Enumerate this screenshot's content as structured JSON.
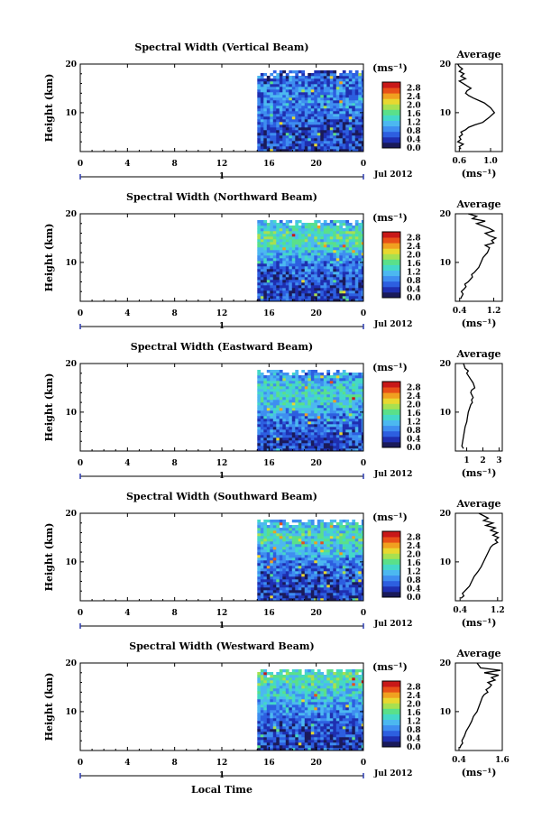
{
  "figure": {
    "xlabel": "Local Time",
    "date_label": "Jul 2012",
    "day_label": "1",
    "colorbar_unit": "(ms⁻¹)",
    "colorbar_ticks": [
      "0.0",
      "0.4",
      "0.8",
      "1.2",
      "1.6",
      "2.0",
      "2.4",
      "2.8"
    ],
    "colormap": [
      "#1a1a5a",
      "#1f2fb0",
      "#2d5fe0",
      "#3f8ef0",
      "#4cb8f0",
      "#44d8c8",
      "#5ae08a",
      "#a8e050",
      "#e8d830",
      "#f0a020",
      "#e85018",
      "#c81818"
    ],
    "avg_title": "Average",
    "avg_xunit": "(ms⁻¹)"
  },
  "chart_data": [
    {
      "type": "heatmap",
      "title": "Spectral Width (Vertical Beam)",
      "ylabel": "Height (km)",
      "xlabel": "",
      "x_ticks": [
        "0",
        "4",
        "8",
        "12",
        "16",
        "20",
        "0"
      ],
      "y_ticks": [
        "10",
        "20"
      ],
      "xlim": [
        0,
        24
      ],
      "ylim": [
        2,
        20
      ],
      "data_start_hour": 15.0,
      "z_range": [
        0,
        3.0
      ],
      "profile_mean": [
        [
          2,
          0.4
        ],
        [
          4,
          0.5
        ],
        [
          6,
          0.5
        ],
        [
          8,
          0.55
        ],
        [
          10,
          0.7
        ],
        [
          12,
          0.9
        ],
        [
          14,
          0.8
        ],
        [
          16,
          0.7
        ],
        [
          18,
          0.6
        ],
        [
          20,
          0.5
        ]
      ],
      "average": {
        "type": "line",
        "xlim": [
          0.55,
          1.15
        ],
        "x_ticks": [
          "0.6",
          "1.0"
        ],
        "y_ticks": [
          "10",
          "20"
        ],
        "x": [
          0.62,
          0.6,
          0.65,
          0.58,
          0.62,
          0.6,
          0.64,
          0.62,
          0.68,
          0.72,
          0.8,
          0.9,
          0.98,
          1.05,
          1.0,
          0.92,
          0.85,
          0.78,
          0.72,
          0.68,
          0.7,
          0.75,
          0.7,
          0.65,
          0.6,
          0.68,
          0.62,
          0.66,
          0.6,
          0.64,
          0.6,
          0.58
        ],
        "y": [
          2.5,
          3.0,
          3.5,
          4.0,
          4.5,
          5.0,
          5.5,
          6.0,
          6.5,
          7.0,
          7.5,
          8.0,
          9.0,
          10.0,
          11.0,
          12.0,
          12.5,
          13.0,
          13.5,
          14.0,
          14.5,
          15.0,
          15.5,
          16.0,
          16.5,
          17.0,
          17.5,
          18.0,
          18.5,
          19.0,
          19.5,
          20.0
        ]
      }
    },
    {
      "type": "heatmap",
      "title": "Spectral Width (Northward Beam)",
      "ylabel": "Height (km)",
      "xlabel": "",
      "x_ticks": [
        "0",
        "4",
        "8",
        "12",
        "16",
        "20",
        "0"
      ],
      "y_ticks": [
        "10",
        "20"
      ],
      "xlim": [
        0,
        24
      ],
      "ylim": [
        2,
        20
      ],
      "data_start_hour": 15.0,
      "z_range": [
        0,
        3.0
      ],
      "profile_mean": [
        [
          2,
          0.4
        ],
        [
          4,
          0.45
        ],
        [
          6,
          0.5
        ],
        [
          8,
          0.6
        ],
        [
          10,
          0.8
        ],
        [
          12,
          1.1
        ],
        [
          14,
          1.4
        ],
        [
          16,
          1.5
        ],
        [
          18,
          1.2
        ],
        [
          20,
          0.9
        ]
      ],
      "average": {
        "type": "line",
        "xlim": [
          0.3,
          1.4
        ],
        "x_ticks": [
          "0.4",
          "1.2"
        ],
        "y_ticks": [
          "10",
          "20"
        ],
        "x": [
          0.42,
          0.45,
          0.48,
          0.44,
          0.5,
          0.55,
          0.52,
          0.6,
          0.7,
          0.68,
          0.75,
          0.85,
          0.9,
          0.95,
          1.05,
          1.1,
          1.0,
          1.2,
          1.15,
          1.25,
          1.1,
          1.0,
          1.2,
          1.1,
          0.95,
          0.8,
          1.0,
          0.7,
          0.8,
          0.6
        ],
        "y": [
          2.5,
          3.0,
          3.5,
          4.0,
          4.5,
          5.0,
          5.5,
          6.0,
          7.0,
          7.5,
          8.0,
          9.0,
          10.0,
          11.0,
          12.0,
          13.0,
          13.5,
          14.0,
          14.5,
          15.0,
          15.5,
          16.0,
          16.5,
          17.0,
          17.5,
          18.0,
          18.5,
          19.0,
          19.5,
          20.0
        ]
      }
    },
    {
      "type": "heatmap",
      "title": "Spectral Width (Eastward Beam)",
      "ylabel": "Height (km)",
      "xlabel": "",
      "x_ticks": [
        "0",
        "4",
        "8",
        "12",
        "16",
        "20",
        "0"
      ],
      "y_ticks": [
        "10",
        "20"
      ],
      "xlim": [
        0,
        24
      ],
      "ylim": [
        2,
        20
      ],
      "data_start_hour": 15.0,
      "z_range": [
        0,
        3.0
      ],
      "profile_mean": [
        [
          2,
          0.4
        ],
        [
          4,
          0.5
        ],
        [
          6,
          0.6
        ],
        [
          8,
          0.7
        ],
        [
          10,
          0.9
        ],
        [
          12,
          1.2
        ],
        [
          14,
          1.3
        ],
        [
          16,
          1.2
        ],
        [
          18,
          0.9
        ],
        [
          20,
          0.8
        ]
      ],
      "average": {
        "type": "line",
        "xlim": [
          0.3,
          3.2
        ],
        "x_ticks": [
          "1",
          "2",
          "3"
        ],
        "y_ticks": [
          "10",
          "20"
        ],
        "x": [
          0.8,
          0.7,
          0.75,
          0.8,
          0.85,
          0.9,
          1.0,
          1.05,
          1.1,
          1.15,
          1.2,
          1.25,
          1.35,
          1.3,
          1.4,
          1.25,
          1.3,
          1.5,
          1.4,
          1.2,
          1.0,
          1.1,
          0.9,
          0.8
        ],
        "y": [
          2.5,
          3.0,
          4.0,
          5.0,
          6.0,
          7.0,
          8.0,
          9.0,
          10.0,
          10.5,
          11.0,
          11.5,
          12.0,
          12.5,
          13.0,
          14.0,
          14.5,
          15.0,
          16.0,
          17.0,
          18.0,
          18.5,
          19.0,
          20.0
        ]
      }
    },
    {
      "type": "heatmap",
      "title": "Spectral Width (Southward Beam)",
      "ylabel": "Height (km)",
      "xlabel": "",
      "x_ticks": [
        "0",
        "4",
        "8",
        "12",
        "16",
        "20",
        "0"
      ],
      "y_ticks": [
        "10",
        "20"
      ],
      "xlim": [
        0,
        24
      ],
      "ylim": [
        2,
        20
      ],
      "data_start_hour": 15.0,
      "z_range": [
        0,
        3.0
      ],
      "profile_mean": [
        [
          2,
          0.4
        ],
        [
          4,
          0.45
        ],
        [
          6,
          0.5
        ],
        [
          8,
          0.6
        ],
        [
          10,
          0.8
        ],
        [
          12,
          1.0
        ],
        [
          14,
          1.3
        ],
        [
          16,
          1.4
        ],
        [
          18,
          1.2
        ],
        [
          20,
          0.9
        ]
      ],
      "average": {
        "type": "line",
        "xlim": [
          0.3,
          1.3
        ],
        "x_ticks": [
          "0.4",
          "1.2"
        ],
        "y_ticks": [
          "10",
          "20"
        ],
        "x": [
          0.42,
          0.48,
          0.45,
          0.5,
          0.55,
          0.6,
          0.65,
          0.7,
          0.78,
          0.85,
          0.9,
          0.95,
          1.0,
          1.05,
          1.1,
          1.2,
          1.15,
          1.22,
          1.1,
          1.2,
          1.05,
          1.15,
          0.95,
          1.1,
          0.9,
          1.0,
          0.8
        ],
        "y": [
          2.5,
          3.0,
          3.5,
          4.0,
          4.5,
          5.0,
          6.0,
          7.0,
          8.0,
          9.0,
          10.0,
          11.0,
          12.0,
          13.0,
          13.5,
          14.0,
          14.5,
          15.0,
          15.5,
          16.0,
          16.5,
          17.0,
          17.5,
          18.0,
          18.5,
          19.0,
          20.0
        ]
      }
    },
    {
      "type": "heatmap",
      "title": "Spectral Width (Westward Beam)",
      "ylabel": "Height (km)",
      "xlabel": "Local Time",
      "x_ticks": [
        "0",
        "4",
        "8",
        "12",
        "16",
        "20",
        "0"
      ],
      "y_ticks": [
        "10",
        "20"
      ],
      "xlim": [
        0,
        24
      ],
      "ylim": [
        2,
        20
      ],
      "data_start_hour": 15.0,
      "z_range": [
        0,
        3.0
      ],
      "profile_mean": [
        [
          2,
          0.35
        ],
        [
          4,
          0.45
        ],
        [
          6,
          0.5
        ],
        [
          8,
          0.65
        ],
        [
          10,
          0.8
        ],
        [
          12,
          1.0
        ],
        [
          14,
          1.2
        ],
        [
          16,
          1.4
        ],
        [
          18,
          1.5
        ],
        [
          20,
          1.0
        ]
      ],
      "average": {
        "type": "line",
        "xlim": [
          0.3,
          1.6
        ],
        "x_ticks": [
          "0.4",
          "1.6"
        ],
        "y_ticks": [
          "10",
          "20"
        ],
        "x": [
          0.42,
          0.45,
          0.5,
          0.48,
          0.55,
          0.6,
          0.68,
          0.75,
          0.8,
          0.9,
          0.95,
          1.0,
          1.05,
          1.1,
          1.2,
          1.15,
          1.25,
          1.3,
          1.2,
          1.4,
          1.3,
          1.5,
          1.1,
          1.55,
          1.0,
          0.9
        ],
        "y": [
          2.5,
          3.0,
          3.5,
          4.0,
          5.0,
          6.0,
          7.0,
          8.0,
          9.0,
          10.0,
          11.0,
          12.0,
          13.0,
          13.5,
          14.0,
          14.5,
          15.0,
          15.5,
          16.0,
          16.5,
          17.0,
          17.5,
          18.0,
          18.5,
          19.0,
          20.0
        ]
      }
    }
  ]
}
